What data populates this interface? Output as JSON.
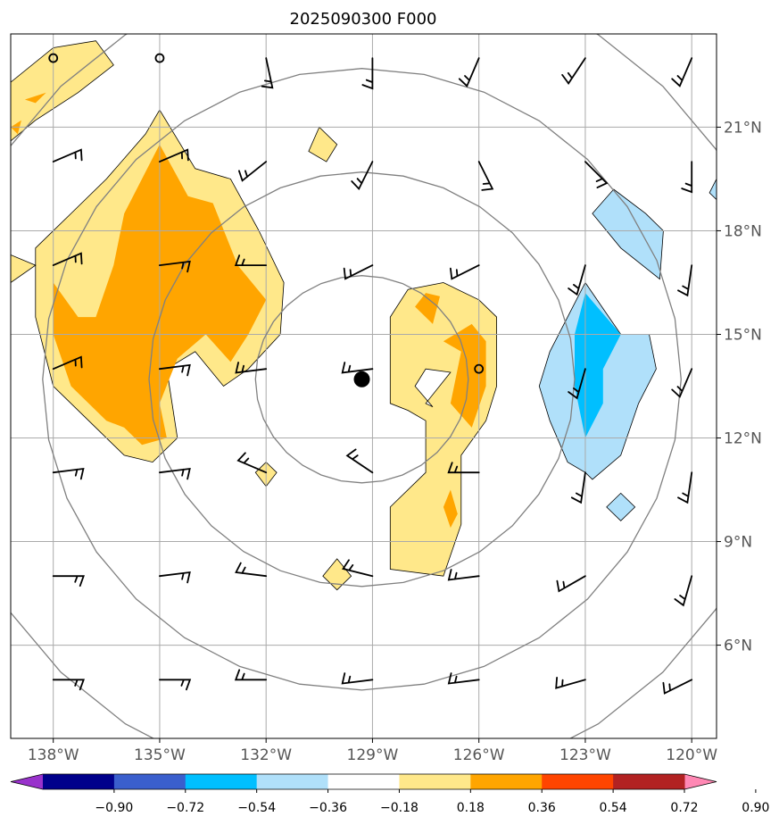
{
  "chart_data": {
    "type": "contour map",
    "title": "2025090300 F000",
    "x_ticks": [
      "138°W",
      "135°W",
      "132°W",
      "129°W",
      "126°W",
      "123°W",
      "120°W"
    ],
    "x_tick_values": [
      -138,
      -135,
      -132,
      -129,
      -126,
      -123,
      -120
    ],
    "y_ticks": [
      "21°N",
      "18°N",
      "15°N",
      "12°N",
      "9°N",
      "6°N"
    ],
    "y_tick_values": [
      21,
      18,
      15,
      12,
      9,
      6
    ],
    "lon_range": [
      -139.2,
      -119.3
    ],
    "lat_range": [
      3.3,
      23.7
    ],
    "grid": true,
    "center": {
      "lon": -129.3,
      "lat": 13.7
    },
    "range_ring_radii_deg": [
      3,
      6,
      9,
      12
    ],
    "colorbar": {
      "levels": [
        -0.9,
        -0.72,
        -0.54,
        -0.36,
        -0.18,
        0.18,
        0.36,
        0.54,
        0.72,
        0.9
      ],
      "labels": [
        "−0.90",
        "−0.72",
        "−0.54",
        "−0.36",
        "−0.18",
        "0.18",
        "0.36",
        "0.54",
        "0.72",
        "0.90"
      ],
      "colors": [
        "#9932cc",
        "#00008b",
        "#3a5fcd",
        "#00bfff",
        "#b0e0fa",
        "#ffffff",
        "#ffe88a",
        "#ffa500",
        "#ff4500",
        "#b22222",
        "#ff88b4"
      ],
      "extend": "both"
    },
    "fields": [
      {
        "level": 0.18,
        "color": "#ffe88a",
        "polygon": [
          [
            -139.2,
            22.3
          ],
          [
            -138.0,
            23.3
          ],
          [
            -136.8,
            23.5
          ],
          [
            -136.3,
            22.8
          ],
          [
            -137.3,
            22.0
          ],
          [
            -138.5,
            21.2
          ],
          [
            -139.2,
            20.6
          ]
        ]
      },
      {
        "level": 0.36,
        "color": "#ffa500",
        "polygon": [
          [
            -138.8,
            21.8
          ],
          [
            -138.2,
            22.0
          ],
          [
            -138.5,
            21.7
          ]
        ]
      },
      {
        "level": 0.36,
        "color": "#ffa500",
        "polygon": [
          [
            -139.2,
            21.0
          ],
          [
            -138.9,
            21.2
          ],
          [
            -139.0,
            20.8
          ]
        ]
      },
      {
        "level": 0.18,
        "color": "#ffe88a",
        "polygon": [
          [
            -135.4,
            20.8
          ],
          [
            -135.0,
            21.5
          ],
          [
            -134.0,
            19.8
          ],
          [
            -133.0,
            19.5
          ],
          [
            -132.2,
            18.0
          ],
          [
            -131.5,
            16.5
          ],
          [
            -131.6,
            15.0
          ],
          [
            -132.5,
            14.0
          ],
          [
            -133.2,
            13.5
          ],
          [
            -134.0,
            14.5
          ],
          [
            -134.8,
            14.0
          ],
          [
            -134.5,
            12.0
          ],
          [
            -135.2,
            11.3
          ],
          [
            -136.0,
            11.5
          ],
          [
            -137.0,
            12.5
          ],
          [
            -138.0,
            13.5
          ],
          [
            -138.5,
            15.5
          ],
          [
            -138.5,
            17.5
          ],
          [
            -137.5,
            18.5
          ],
          [
            -136.5,
            19.5
          ]
        ]
      },
      {
        "level": 0.36,
        "color": "#ffa500",
        "polygon": [
          [
            -135.0,
            20.5
          ],
          [
            -134.2,
            19.0
          ],
          [
            -133.5,
            18.8
          ],
          [
            -132.8,
            17.0
          ],
          [
            -132.0,
            16.0
          ],
          [
            -132.5,
            15.0
          ],
          [
            -133.0,
            14.2
          ],
          [
            -133.7,
            15.0
          ],
          [
            -134.5,
            14.3
          ],
          [
            -135.0,
            13.0
          ],
          [
            -134.8,
            12.0
          ],
          [
            -135.5,
            11.8
          ],
          [
            -136.0,
            12.3
          ],
          [
            -136.5,
            12.5
          ],
          [
            -137.5,
            13.5
          ],
          [
            -138.0,
            15.0
          ],
          [
            -138.0,
            16.5
          ],
          [
            -137.3,
            15.5
          ],
          [
            -136.8,
            15.5
          ],
          [
            -136.3,
            17.0
          ],
          [
            -136.0,
            18.5
          ],
          [
            -135.5,
            19.5
          ]
        ]
      },
      {
        "level": 0.18,
        "color": "#ffe88a",
        "polygon": [
          [
            -139.2,
            17.3
          ],
          [
            -138.5,
            17.0
          ],
          [
            -139.2,
            16.5
          ]
        ]
      },
      {
        "level": 0.18,
        "color": "#ffe88a",
        "polygon": [
          [
            -130.5,
            21.0
          ],
          [
            -130.0,
            20.5
          ],
          [
            -130.3,
            20.0
          ],
          [
            -130.8,
            20.3
          ]
        ]
      },
      {
        "level": 0.18,
        "color": "#ffe88a",
        "polygon": [
          [
            -132.0,
            11.3
          ],
          [
            -131.7,
            11.0
          ],
          [
            -132.0,
            10.6
          ],
          [
            -132.3,
            11.0
          ]
        ]
      },
      {
        "level": 0.18,
        "color": "#ffe88a",
        "polygon": [
          [
            -130.0,
            8.5
          ],
          [
            -129.6,
            8.0
          ],
          [
            -130.0,
            7.6
          ],
          [
            -130.4,
            8.0
          ]
        ]
      },
      {
        "level": 0.18,
        "color": "#ffe88a",
        "polygon": [
          [
            -127.0,
            16.5
          ],
          [
            -128.0,
            16.3
          ],
          [
            -128.5,
            15.5
          ],
          [
            -128.5,
            13.0
          ],
          [
            -128.0,
            12.8
          ],
          [
            -127.5,
            12.5
          ],
          [
            -127.5,
            11.0
          ],
          [
            -128.5,
            10.0
          ],
          [
            -128.5,
            8.2
          ],
          [
            -127.0,
            8.0
          ],
          [
            -126.5,
            9.5
          ],
          [
            -126.5,
            11.5
          ],
          [
            -125.8,
            12.5
          ],
          [
            -125.5,
            13.5
          ],
          [
            -125.5,
            15.5
          ],
          [
            -126.0,
            16.0
          ]
        ],
        "hole": [
          [
            -126.8,
            13.9
          ],
          [
            -127.5,
            13.0
          ],
          [
            -127.3,
            12.9
          ],
          [
            -127.8,
            13.5
          ],
          [
            -127.5,
            14.0
          ]
        ]
      },
      {
        "level": 0.36,
        "color": "#ffa500",
        "polygon": [
          [
            -127.5,
            16.2
          ],
          [
            -127.1,
            16.1
          ],
          [
            -127.3,
            15.3
          ],
          [
            -127.8,
            15.8
          ]
        ]
      },
      {
        "level": 0.36,
        "color": "#ffa500",
        "polygon": [
          [
            -126.2,
            15.3
          ],
          [
            -125.8,
            14.8
          ],
          [
            -125.8,
            13.5
          ],
          [
            -126.2,
            12.3
          ],
          [
            -126.8,
            13.0
          ],
          [
            -126.5,
            14.5
          ],
          [
            -127.0,
            14.8
          ]
        ]
      },
      {
        "level": 0.36,
        "color": "#ffa500",
        "polygon": [
          [
            -126.8,
            10.5
          ],
          [
            -126.6,
            9.8
          ],
          [
            -126.8,
            9.4
          ],
          [
            -127.0,
            10.0
          ]
        ]
      },
      {
        "level": -0.18,
        "color": "#b0e0fa",
        "polygon": [
          [
            -123.0,
            16.5
          ],
          [
            -122.0,
            15.0
          ],
          [
            -121.2,
            15.0
          ],
          [
            -121.0,
            14.0
          ],
          [
            -121.5,
            13.0
          ],
          [
            -122.0,
            11.5
          ],
          [
            -122.8,
            10.8
          ],
          [
            -123.0,
            11.0
          ],
          [
            -123.5,
            11.3
          ],
          [
            -124.0,
            12.5
          ],
          [
            -124.3,
            13.5
          ],
          [
            -124.0,
            14.5
          ],
          [
            -123.5,
            15.5
          ]
        ]
      },
      {
        "level": -0.36,
        "color": "#00bfff",
        "polygon": [
          [
            -123.0,
            16.2
          ],
          [
            -122.0,
            15.0
          ],
          [
            -122.5,
            14.0
          ],
          [
            -122.5,
            13.0
          ],
          [
            -123.0,
            12.0
          ],
          [
            -123.3,
            13.5
          ],
          [
            -123.3,
            15.0
          ]
        ]
      },
      {
        "level": -0.18,
        "color": "#b0e0fa",
        "polygon": [
          [
            -122.2,
            19.2
          ],
          [
            -121.3,
            18.5
          ],
          [
            -120.8,
            18.0
          ],
          [
            -120.9,
            16.6
          ],
          [
            -122.0,
            17.5
          ],
          [
            -122.8,
            18.5
          ]
        ]
      },
      {
        "level": -0.18,
        "color": "#b0e0fa",
        "polygon": [
          [
            -119.3,
            19.5
          ],
          [
            -119.3,
            18.9
          ],
          [
            -119.5,
            19.1
          ]
        ]
      },
      {
        "level": -0.18,
        "color": "#b0e0fa",
        "polygon": [
          [
            -122.0,
            10.4
          ],
          [
            -121.6,
            10.0
          ],
          [
            -122.0,
            9.6
          ],
          [
            -122.4,
            10.0
          ]
        ]
      }
    ],
    "wind_barbs": [
      {
        "lon": -132,
        "lat": 23.0,
        "u": 1.5,
        "v": -7
      },
      {
        "lon": -129,
        "lat": 23.0,
        "u": 0,
        "v": -8
      },
      {
        "lon": -126,
        "lat": 23.0,
        "u": -3,
        "v": -7
      },
      {
        "lon": -123,
        "lat": 23.0,
        "u": -4,
        "v": -6
      },
      {
        "lon": -120,
        "lat": 23.0,
        "u": -3,
        "v": -7
      },
      {
        "lon": -138,
        "lat": 20.0,
        "u": 7,
        "v": 3
      },
      {
        "lon": -135,
        "lat": 20.0,
        "u": 7,
        "v": 3
      },
      {
        "lon": -132,
        "lat": 20.0,
        "u": -5,
        "v": -4
      },
      {
        "lon": -129,
        "lat": 20.0,
        "u": -3,
        "v": -6
      },
      {
        "lon": -126,
        "lat": 20.0,
        "u": 3,
        "v": -6
      },
      {
        "lon": -123,
        "lat": 20.0,
        "u": 5,
        "v": -5
      },
      {
        "lon": -120,
        "lat": 20.0,
        "u": 0,
        "v": -7
      },
      {
        "lon": -138,
        "lat": 17.0,
        "u": 7,
        "v": 3
      },
      {
        "lon": -135,
        "lat": 17.0,
        "u": 8,
        "v": 1
      },
      {
        "lon": -132,
        "lat": 17.0,
        "u": -8,
        "v": 0
      },
      {
        "lon": -129,
        "lat": 17.0,
        "u": -6,
        "v": -3
      },
      {
        "lon": -126,
        "lat": 17.0,
        "u": -6,
        "v": -3
      },
      {
        "lon": -123,
        "lat": 17.0,
        "u": -2,
        "v": -7
      },
      {
        "lon": -120,
        "lat": 17.0,
        "u": -1,
        "v": -7
      },
      {
        "lon": -138,
        "lat": 14.0,
        "u": 7,
        "v": 3
      },
      {
        "lon": -135,
        "lat": 14.0,
        "u": 8,
        "v": 1
      },
      {
        "lon": -132,
        "lat": 14.0,
        "u": -8,
        "v": -1
      },
      {
        "lon": -129,
        "lat": 14.0,
        "u": -8,
        "v": -1
      },
      {
        "lon": -123,
        "lat": 14.0,
        "u": -2,
        "v": -7
      },
      {
        "lon": -120,
        "lat": 14.0,
        "u": -3,
        "v": -7
      },
      {
        "lon": -138,
        "lat": 11.0,
        "u": 8,
        "v": 1
      },
      {
        "lon": -135,
        "lat": 11.0,
        "u": 8,
        "v": 1
      },
      {
        "lon": -132,
        "lat": 11.0,
        "u": -7,
        "v": 3
      },
      {
        "lon": -129,
        "lat": 11.0,
        "u": -6,
        "v": 4
      },
      {
        "lon": -126,
        "lat": 11.0,
        "u": -8,
        "v": 0
      },
      {
        "lon": -123,
        "lat": 11.0,
        "u": -1,
        "v": -7
      },
      {
        "lon": -120,
        "lat": 11.0,
        "u": -1,
        "v": -7
      },
      {
        "lon": -138,
        "lat": 8.0,
        "u": 8,
        "v": 0
      },
      {
        "lon": -135,
        "lat": 8.0,
        "u": 8,
        "v": 1
      },
      {
        "lon": -132,
        "lat": 8.0,
        "u": -8,
        "v": 1
      },
      {
        "lon": -129,
        "lat": 8.0,
        "u": -8,
        "v": 2
      },
      {
        "lon": -126,
        "lat": 8.0,
        "u": -8,
        "v": -1
      },
      {
        "lon": -123,
        "lat": 8.0,
        "u": -7,
        "v": -4
      },
      {
        "lon": -120,
        "lat": 8.0,
        "u": -2,
        "v": -7
      },
      {
        "lon": -138,
        "lat": 5.0,
        "u": 8,
        "v": 0
      },
      {
        "lon": -135,
        "lat": 5.0,
        "u": 8,
        "v": 0
      },
      {
        "lon": -132,
        "lat": 5.0,
        "u": -8,
        "v": 0
      },
      {
        "lon": -129,
        "lat": 5.0,
        "u": -8,
        "v": -1
      },
      {
        "lon": -126,
        "lat": 5.0,
        "u": -8,
        "v": -1
      },
      {
        "lon": -123,
        "lat": 5.0,
        "u": -7,
        "v": -2
      },
      {
        "lon": -120,
        "lat": 5.0,
        "u": -6,
        "v": -3
      }
    ],
    "calm_stations": [
      {
        "lon": -138,
        "lat": 23.0
      },
      {
        "lon": -135,
        "lat": 23.0
      },
      {
        "lon": -126,
        "lat": 14.0
      }
    ]
  }
}
